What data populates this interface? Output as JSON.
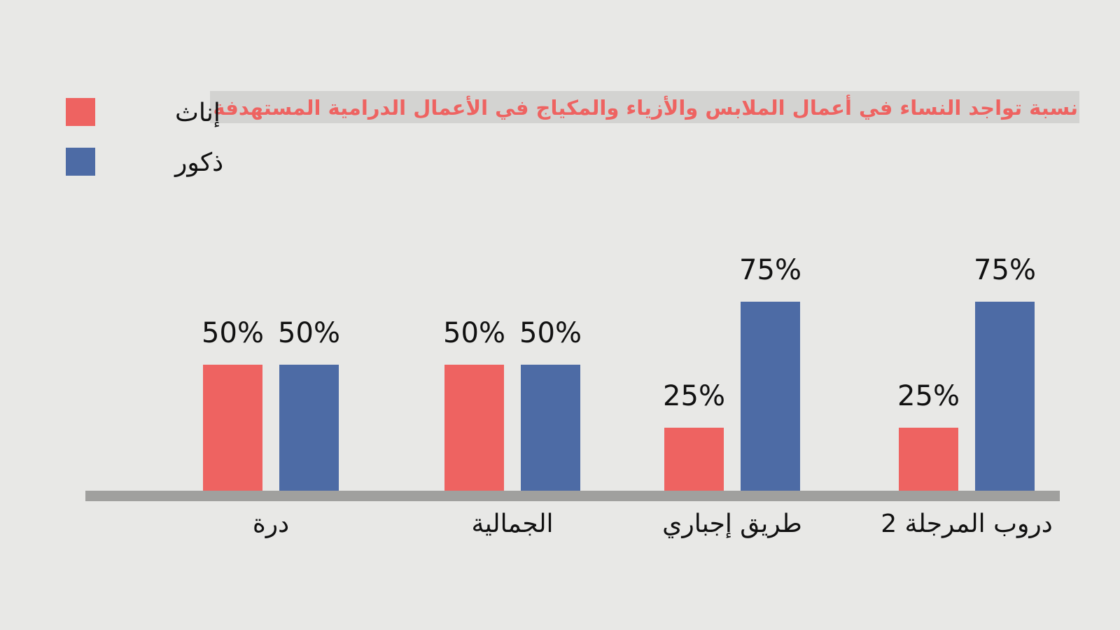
{
  "chart_data": {
    "type": "bar",
    "title": "نسبة تواجد النساء في أعمال الملابس والأزياء والمكياج في الأعمال الدرامية المستهدفة",
    "categories": [
      "درة",
      "الجمالية",
      "طريق إجباري",
      "دروب المرجلة 2"
    ],
    "series": [
      {
        "name": "إناث",
        "color": "#ee6361",
        "values": [
          50,
          50,
          25,
          25
        ]
      },
      {
        "name": "ذكور",
        "color": "#4d6ba5",
        "values": [
          50,
          50,
          75,
          75
        ]
      }
    ],
    "value_suffix": "%",
    "ylim": [
      0,
      100
    ],
    "grid": false,
    "legend_position": "top-left",
    "axis_color": "#a0a09e"
  }
}
